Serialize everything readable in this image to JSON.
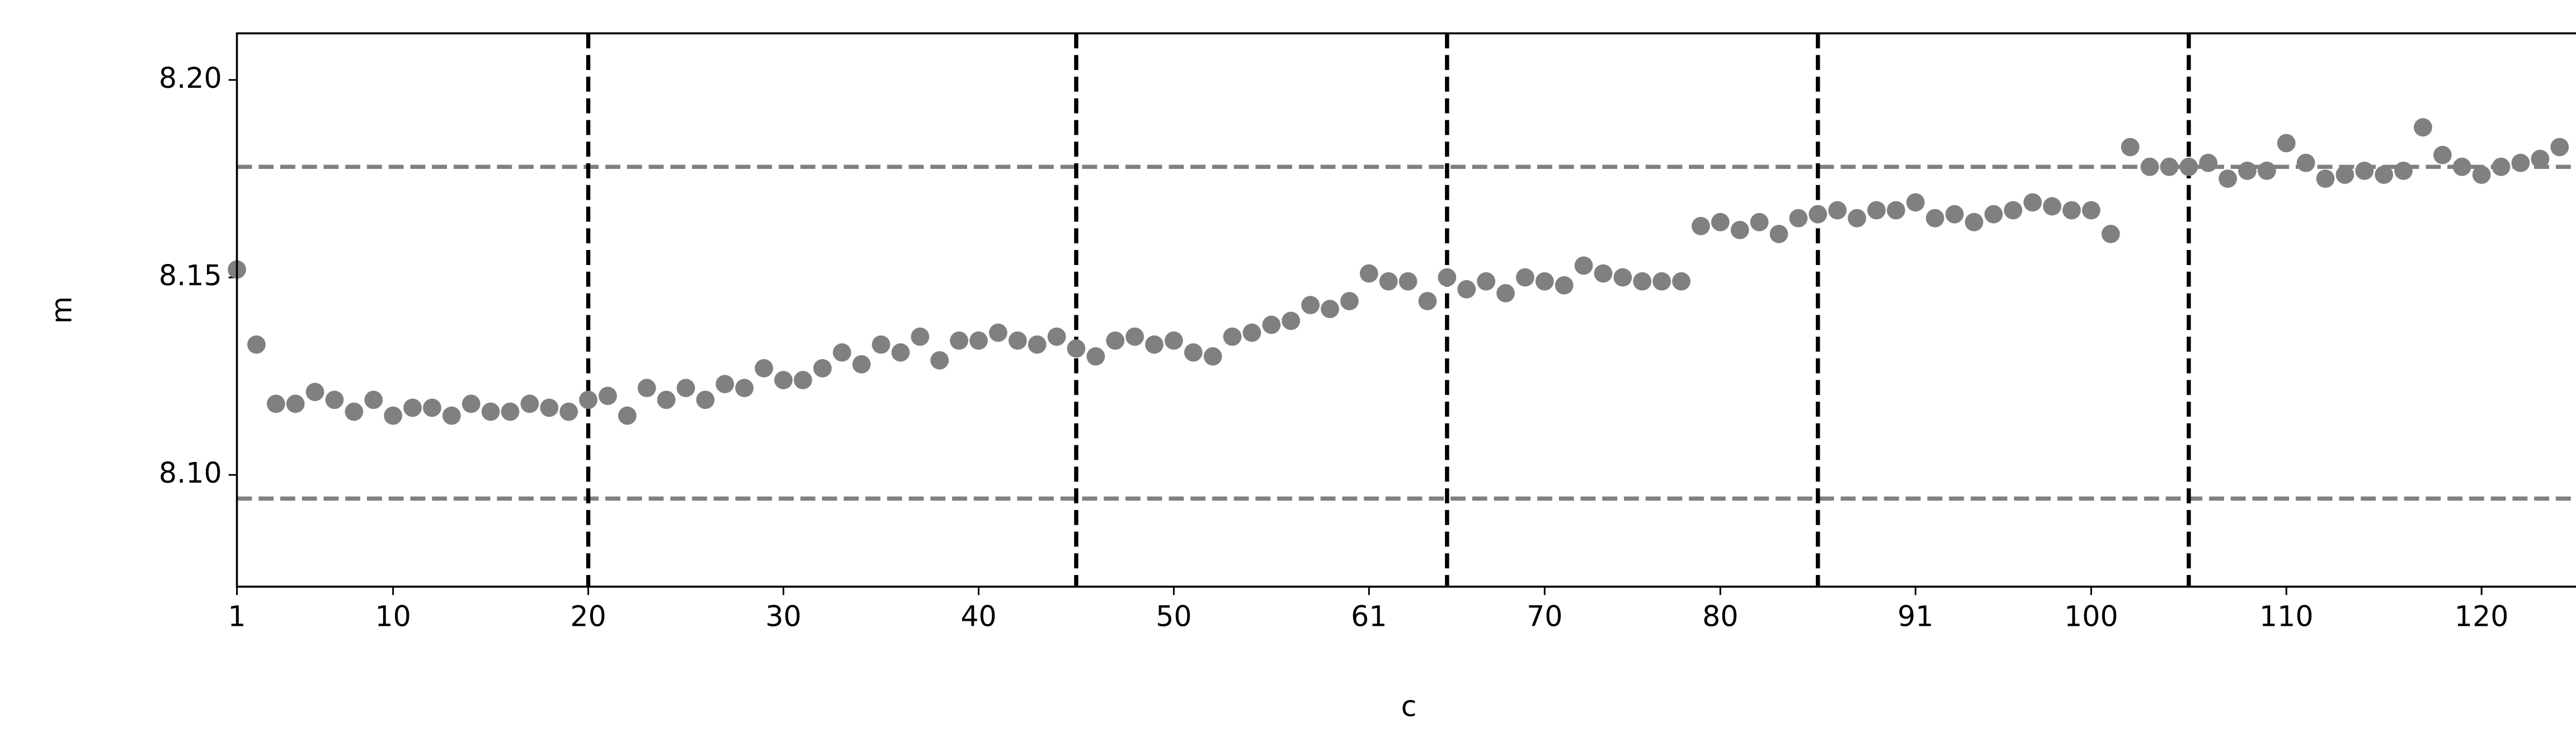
{
  "chart_data": {
    "type": "scatter",
    "x_label": "c",
    "y_label": "m",
    "color": "#808080",
    "values": [
      8.152,
      8.133,
      8.118,
      8.118,
      8.121,
      8.119,
      8.116,
      8.119,
      8.115,
      8.117,
      8.117,
      8.115,
      8.118,
      8.116,
      8.116,
      8.118,
      8.117,
      8.116,
      8.119,
      8.12,
      8.115,
      8.122,
      8.119,
      8.122,
      8.119,
      8.123,
      8.122,
      8.127,
      8.124,
      8.124,
      8.127,
      8.131,
      8.128,
      8.133,
      8.131,
      8.135,
      8.129,
      8.134,
      8.134,
      8.136,
      8.134,
      8.133,
      8.135,
      8.132,
      8.13,
      8.134,
      8.135,
      8.133,
      8.134,
      8.131,
      8.13,
      8.135,
      8.136,
      8.138,
      8.139,
      8.143,
      8.142,
      8.144,
      8.151,
      8.149,
      8.149,
      8.144,
      8.15,
      8.147,
      8.149,
      8.146,
      8.15,
      8.149,
      8.148,
      8.153,
      8.151,
      8.15,
      8.149,
      8.149,
      8.149,
      8.163,
      8.164,
      8.162,
      8.164,
      8.161,
      8.165,
      8.166,
      8.167,
      8.165,
      8.167,
      8.167,
      8.169,
      8.165,
      8.166,
      8.164,
      8.166,
      8.167,
      8.169,
      8.168,
      8.167,
      8.167,
      8.161,
      8.183,
      8.178,
      8.178,
      8.178,
      8.179,
      8.175,
      8.177,
      8.177,
      8.184,
      8.179,
      8.175,
      8.176,
      8.177,
      8.176,
      8.177,
      8.188,
      8.181,
      8.178,
      8.176,
      8.178,
      8.179,
      8.18,
      8.183
    ],
    "xlim": [
      0,
      120
    ],
    "xticks": [
      {
        "value": 0,
        "label": "1"
      },
      {
        "value": 8,
        "label": "10"
      },
      {
        "value": 18,
        "label": "20"
      },
      {
        "value": 28,
        "label": "30"
      },
      {
        "value": 38,
        "label": "40"
      },
      {
        "value": 48,
        "label": "50"
      },
      {
        "value": 58,
        "label": "61"
      },
      {
        "value": 67,
        "label": "70"
      },
      {
        "value": 76,
        "label": "80"
      },
      {
        "value": 86,
        "label": "91"
      },
      {
        "value": 95,
        "label": "100"
      },
      {
        "value": 105,
        "label": "110"
      },
      {
        "value": 115,
        "label": "120"
      }
    ],
    "ylim": [
      8.0717,
      8.2118
    ],
    "yticks": [
      {
        "value": 8.1,
        "label": "8.10"
      },
      8.15,
      {
        "value": 8.2,
        "label": "8.20"
      }
    ],
    "hlines": [
      {
        "value": 8.178,
        "color": "#808080"
      },
      {
        "value": 8.094,
        "color": "#808080"
      }
    ],
    "vlines": [
      {
        "value": 18,
        "color": "#000000"
      },
      {
        "value": 43,
        "color": "#000000"
      },
      {
        "value": 62,
        "color": "#000000"
      },
      {
        "value": 81,
        "color": "#000000"
      },
      {
        "value": 100,
        "color": "#000000"
      }
    ]
  }
}
